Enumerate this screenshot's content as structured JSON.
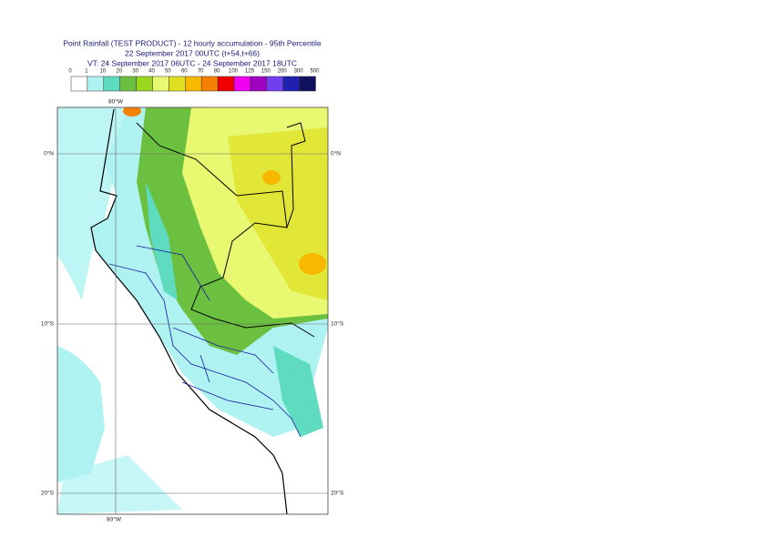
{
  "header": {
    "title": "Point Rainfall (TEST PRODUCT) - 12 hourly accumulation - 95th Percentile",
    "run": "22 September 2017 00UTC (t+54,t+66)",
    "valid": "VT: 24 September 2017 06UTC - 24 September 2017 18UTC"
  },
  "legend": {
    "levels": [
      0,
      1,
      10,
      20,
      30,
      40,
      50,
      60,
      70,
      80,
      100,
      125,
      150,
      200,
      300,
      500
    ],
    "colors": [
      "#ffffff",
      "#aef2f2",
      "#5fdcc0",
      "#6cc040",
      "#9ad820",
      "#e8f870",
      "#e0e020",
      "#f8b800",
      "#f88000",
      "#f00000",
      "#f000f0",
      "#a000c0",
      "#7040f0",
      "#2020b0",
      "#101060"
    ]
  },
  "map": {
    "lon_labels": [
      "80°W"
    ],
    "lat_labels": [
      "0°N",
      "10°S",
      "20°S"
    ]
  }
}
